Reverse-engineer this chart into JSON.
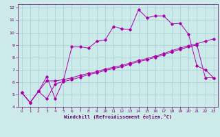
{
  "xlabel": "Windchill (Refroidissement éolien,°C)",
  "bg_color": "#cceaea",
  "grid_color": "#aad4d4",
  "line_color": "#aa00aa",
  "spine_color": "#660066",
  "xlim": [
    -0.5,
    23.5
  ],
  "ylim": [
    4,
    12.3
  ],
  "xticks": [
    0,
    1,
    2,
    3,
    4,
    5,
    6,
    7,
    8,
    9,
    10,
    11,
    12,
    13,
    14,
    15,
    16,
    17,
    18,
    19,
    20,
    21,
    22,
    23
  ],
  "yticks": [
    4,
    5,
    6,
    7,
    8,
    9,
    10,
    11,
    12
  ],
  "line1_x": [
    0,
    1,
    2,
    3,
    4,
    5,
    6,
    7,
    8,
    9,
    10,
    11,
    12,
    13,
    14,
    15,
    16,
    17,
    18,
    19,
    20,
    21,
    22,
    23
  ],
  "line1_y": [
    5.15,
    4.35,
    5.25,
    4.65,
    5.85,
    6.05,
    6.2,
    6.4,
    6.6,
    6.75,
    6.95,
    7.1,
    7.25,
    7.45,
    7.65,
    7.8,
    8.0,
    8.2,
    8.45,
    8.65,
    8.85,
    9.0,
    6.35,
    6.35
  ],
  "line2_x": [
    0,
    1,
    2,
    3,
    4,
    5,
    6,
    7,
    8,
    9,
    10,
    11,
    12,
    13,
    14,
    15,
    16,
    17,
    18,
    19,
    20,
    21,
    22,
    23
  ],
  "line2_y": [
    5.15,
    4.35,
    5.25,
    6.45,
    4.65,
    6.15,
    8.85,
    8.85,
    8.75,
    9.3,
    9.4,
    10.5,
    10.3,
    10.25,
    11.85,
    11.2,
    11.35,
    11.35,
    10.7,
    10.75,
    9.85,
    7.3,
    7.0,
    6.35
  ],
  "line3_x": [
    0,
    1,
    2,
    3,
    4,
    5,
    6,
    7,
    8,
    9,
    10,
    11,
    12,
    13,
    14,
    15,
    16,
    17,
    18,
    19,
    20,
    21,
    22,
    23
  ],
  "line3_y": [
    5.15,
    4.35,
    5.25,
    6.1,
    6.1,
    6.2,
    6.35,
    6.55,
    6.7,
    6.85,
    7.05,
    7.2,
    7.35,
    7.55,
    7.75,
    7.9,
    8.1,
    8.3,
    8.55,
    8.75,
    8.95,
    9.1,
    9.3,
    9.5
  ]
}
